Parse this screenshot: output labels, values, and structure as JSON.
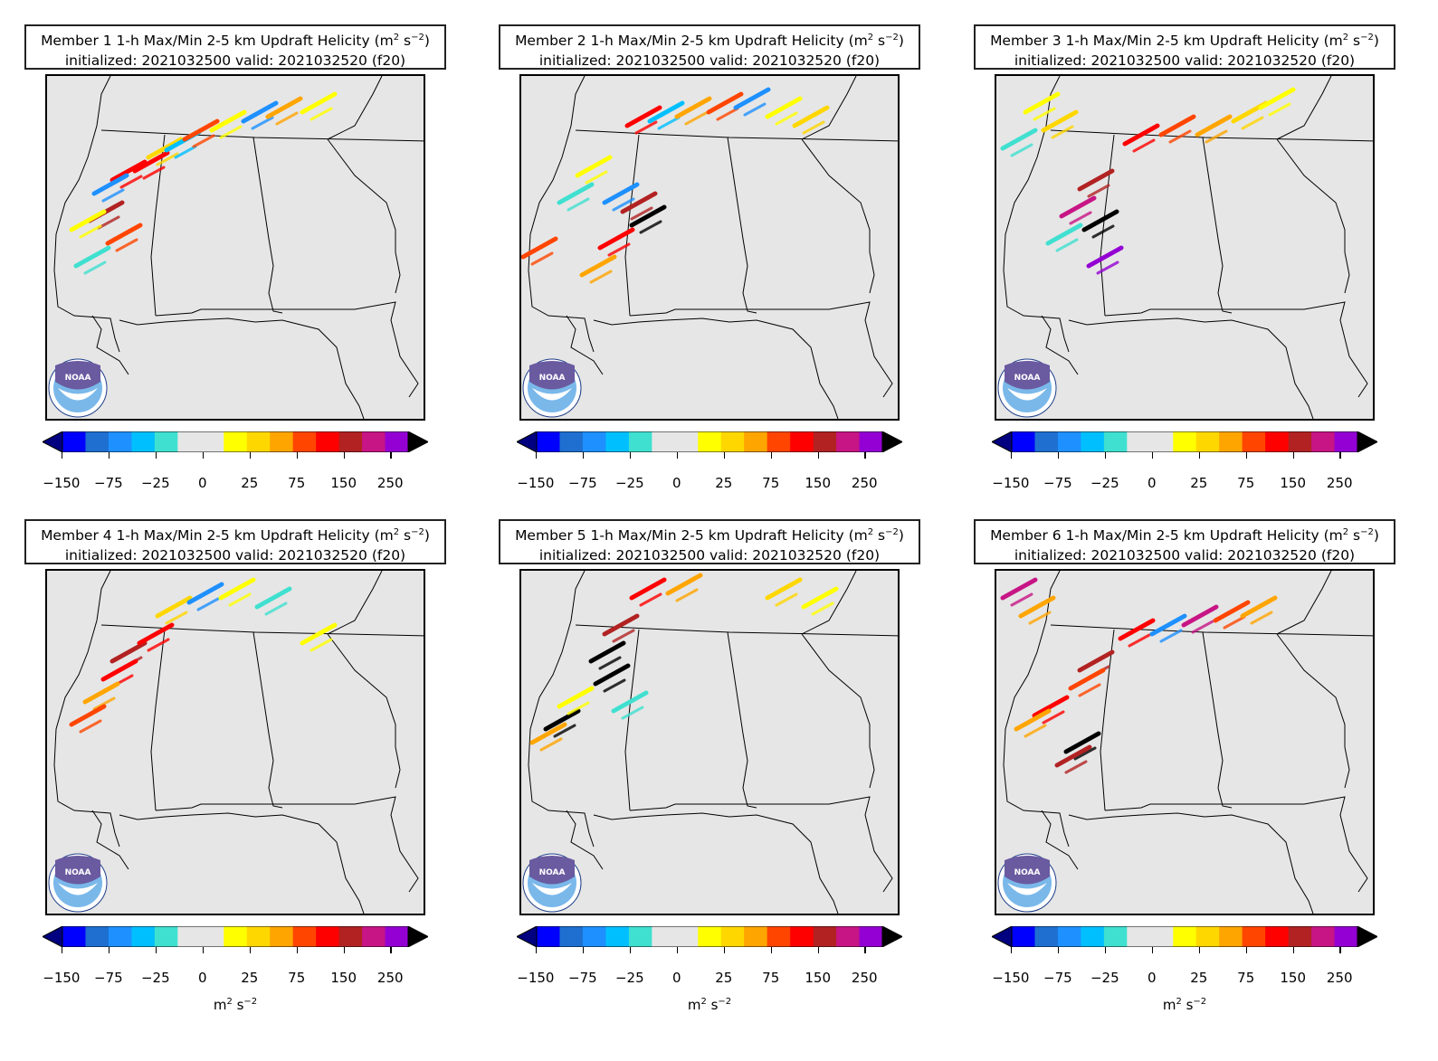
{
  "title_suffix": "1-h Max/Min 2-5 km Updraft Helicity (m",
  "title_exp": "2",
  "title_s": " s",
  "title_s_exp": "−2",
  "title_close": ")",
  "init_line": "initialized: 2021032500 valid: 2021032520 (f20)",
  "panels": [
    {
      "label": "Member 1"
    },
    {
      "label": "Member 2"
    },
    {
      "label": "Member 3"
    },
    {
      "label": "Member 4"
    },
    {
      "label": "Member 5"
    },
    {
      "label": "Member 6"
    }
  ],
  "logo_text": "NOAA",
  "colorbar": {
    "tick_labels": [
      "−150",
      "−75",
      "−25",
      "0",
      "25",
      "75",
      "150",
      "250"
    ],
    "colors": [
      "#0000ff",
      "#1e6fd0",
      "#1e90ff",
      "#00bfff",
      "#40e0d0",
      "#e6e6e6",
      "#e6e6e6",
      "#ffff00",
      "#ffd700",
      "#ffa500",
      "#ff4500",
      "#ff0000",
      "#b22222",
      "#c71585",
      "#9400d3"
    ],
    "under_color": "#000080",
    "over_color": "#000000",
    "units": "m",
    "units_exp": "2",
    "units_s": " s",
    "units_s_exp": "−2"
  },
  "swaths": [
    [
      [
        115,
        95,
        "#ff0000"
      ],
      [
        130,
        80,
        "#ffd700"
      ],
      [
        150,
        72,
        "#00bfff"
      ],
      [
        170,
        60,
        "#ff4500"
      ],
      [
        200,
        50,
        "#ffff00"
      ],
      [
        235,
        40,
        "#1e90ff"
      ],
      [
        262,
        35,
        "#ffa500"
      ],
      [
        300,
        30,
        "#ffff00"
      ],
      [
        90,
        105,
        "#ff0000"
      ],
      [
        70,
        120,
        "#1e90ff"
      ],
      [
        65,
        150,
        "#b22222"
      ],
      [
        85,
        175,
        "#ff4500"
      ],
      [
        45,
        160,
        "#ffff00"
      ],
      [
        50,
        200,
        "#40e0d0"
      ]
    ],
    [
      [
        135,
        45,
        "#ff0000"
      ],
      [
        160,
        40,
        "#00bfff"
      ],
      [
        190,
        35,
        "#ffa500"
      ],
      [
        225,
        30,
        "#ff4500"
      ],
      [
        255,
        25,
        "#1e90ff"
      ],
      [
        290,
        35,
        "#ffff00"
      ],
      [
        320,
        45,
        "#ffd700"
      ],
      [
        80,
        100,
        "#ffff00"
      ],
      [
        60,
        130,
        "#40e0d0"
      ],
      [
        130,
        140,
        "#b22222"
      ],
      [
        140,
        155,
        "#000000"
      ],
      [
        105,
        180,
        "#ff0000"
      ],
      [
        20,
        190,
        "#ff4500"
      ],
      [
        85,
        210,
        "#ffa500"
      ],
      [
        110,
        130,
        "#1e90ff"
      ]
    ],
    [
      [
        160,
        65,
        "#ff0000"
      ],
      [
        200,
        55,
        "#ff4500"
      ],
      [
        240,
        55,
        "#ffa500"
      ],
      [
        280,
        40,
        "#ffd700"
      ],
      [
        310,
        25,
        "#ffff00"
      ],
      [
        50,
        30,
        "#ffff00"
      ],
      [
        70,
        50,
        "#ffd700"
      ],
      [
        110,
        115,
        "#b22222"
      ],
      [
        90,
        145,
        "#c71585"
      ],
      [
        115,
        160,
        "#000000"
      ],
      [
        75,
        175,
        "#40e0d0"
      ],
      [
        120,
        200,
        "#9400d3"
      ],
      [
        25,
        70,
        "#40e0d0"
      ]
    ],
    [
      [
        140,
        40,
        "#ffd700"
      ],
      [
        175,
        25,
        "#1e90ff"
      ],
      [
        210,
        20,
        "#ffff00"
      ],
      [
        250,
        30,
        "#40e0d0"
      ],
      [
        90,
        90,
        "#b22222"
      ],
      [
        80,
        110,
        "#ff0000"
      ],
      [
        60,
        135,
        "#ffa500"
      ],
      [
        45,
        160,
        "#ff4500"
      ],
      [
        300,
        70,
        "#ffff00"
      ],
      [
        120,
        70,
        "#ff0000"
      ]
    ],
    [
      [
        140,
        20,
        "#ff0000"
      ],
      [
        110,
        60,
        "#b22222"
      ],
      [
        95,
        90,
        "#000000"
      ],
      [
        100,
        115,
        "#000000"
      ],
      [
        45,
        165,
        "#000000"
      ],
      [
        30,
        180,
        "#ffa500"
      ],
      [
        330,
        30,
        "#ffff00"
      ],
      [
        290,
        20,
        "#ffd700"
      ],
      [
        60,
        140,
        "#ffff00"
      ],
      [
        120,
        145,
        "#40e0d0"
      ],
      [
        180,
        15,
        "#ffa500"
      ]
    ],
    [
      [
        155,
        65,
        "#ff0000"
      ],
      [
        190,
        60,
        "#1e90ff"
      ],
      [
        225,
        50,
        "#c71585"
      ],
      [
        260,
        45,
        "#ff4500"
      ],
      [
        290,
        40,
        "#ffa500"
      ],
      [
        110,
        100,
        "#b22222"
      ],
      [
        100,
        120,
        "#ff4500"
      ],
      [
        60,
        150,
        "#ff0000"
      ],
      [
        40,
        165,
        "#ffa500"
      ],
      [
        95,
        190,
        "#000000"
      ],
      [
        85,
        205,
        "#b22222"
      ],
      [
        25,
        20,
        "#c71585"
      ],
      [
        45,
        40,
        "#ffa500"
      ]
    ]
  ]
}
